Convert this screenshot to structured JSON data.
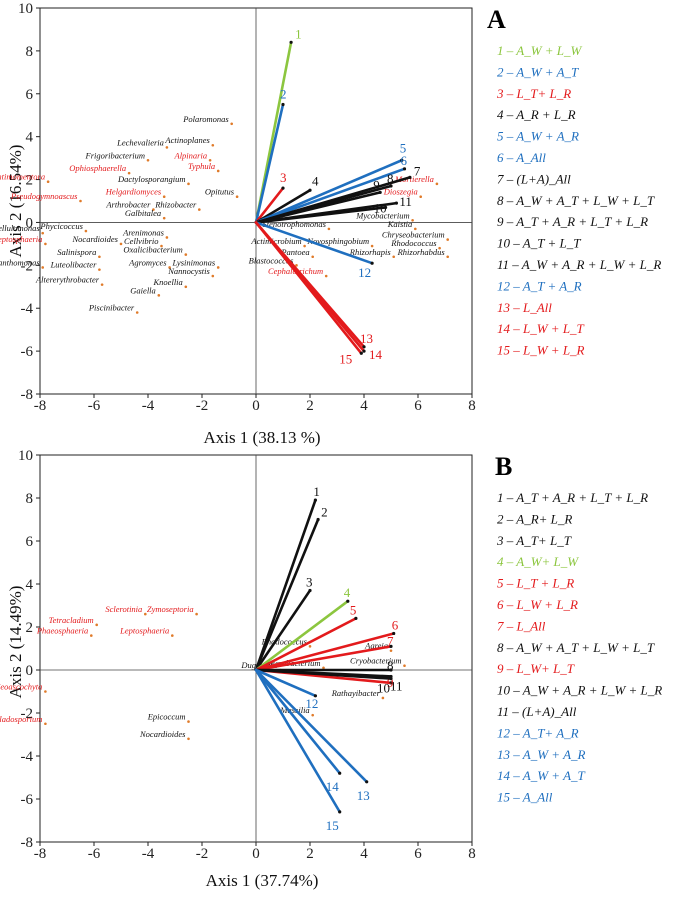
{
  "colors": {
    "green": "#8cc63f",
    "blue": "#1f6fbf",
    "red": "#e31a1c",
    "black": "#111111",
    "taxon_dot": "#e07b2a"
  },
  "chart_data": [
    {
      "type": "scatter",
      "panel": "A",
      "xlabel": "Axis 1 (38.13 %)",
      "ylabel": "Axis 2 (16.54%)",
      "xlim": [
        -8,
        8
      ],
      "ylim": [
        -8,
        10
      ],
      "xticks": [
        -8,
        -6,
        -4,
        -2,
        0,
        2,
        4,
        6,
        8
      ],
      "yticks": [
        -8,
        -6,
        -4,
        -2,
        0,
        2,
        4,
        6,
        8,
        10
      ],
      "vectors": [
        {
          "id": "1",
          "x": 1.3,
          "y": 8.4,
          "color": "green",
          "legend": "1 – A_W + L_W"
        },
        {
          "id": "2",
          "x": 1.0,
          "y": 5.5,
          "color": "blue",
          "legend": "2 – A_W + A_T"
        },
        {
          "id": "3",
          "x": 1.0,
          "y": 1.6,
          "color": "red",
          "legend": "3 – L_T+ L_R"
        },
        {
          "id": "4",
          "x": 2.0,
          "y": 1.5,
          "color": "black",
          "legend": "4 – A_R + L_R"
        },
        {
          "id": "5",
          "x": 5.4,
          "y": 2.9,
          "color": "blue",
          "legend": "5 – A_W + A_R"
        },
        {
          "id": "6",
          "x": 5.5,
          "y": 2.5,
          "color": "blue",
          "legend": "6 – A_All"
        },
        {
          "id": "7",
          "x": 5.7,
          "y": 2.1,
          "color": "black",
          "legend": "7 – (L+A)_All"
        },
        {
          "id": "8",
          "x": 5.0,
          "y": 1.7,
          "color": "black",
          "legend": "8 – A_W + A_T + L_W + L_T"
        },
        {
          "id": "9",
          "x": 4.6,
          "y": 1.4,
          "color": "black",
          "legend": "9 – A_T + A_R + L_T + L_R"
        },
        {
          "id": "10",
          "x": 4.8,
          "y": 0.7,
          "color": "black",
          "legend": "10 – A_T + L_T"
        },
        {
          "id": "11",
          "x": 5.2,
          "y": 0.9,
          "color": "black",
          "legend": "11 – A_W + A_R + L_W + L_R"
        },
        {
          "id": "12",
          "x": 4.3,
          "y": -1.9,
          "color": "blue",
          "legend": "12 – A_T + A_R"
        },
        {
          "id": "13",
          "x": 4.0,
          "y": -5.8,
          "color": "red",
          "legend": "13 – L_All"
        },
        {
          "id": "14",
          "x": 4.0,
          "y": -6.0,
          "color": "red",
          "legend": "14 – L_W + L_T"
        },
        {
          "id": "15",
          "x": 3.9,
          "y": -6.1,
          "color": "red",
          "legend": "15 – L_W + L_R"
        }
      ],
      "taxa": [
        {
          "name": "Polaromonas",
          "x": -0.9,
          "y": 4.6,
          "red": false
        },
        {
          "name": "Lechevalieria",
          "x": -3.3,
          "y": 3.5,
          "red": false
        },
        {
          "name": "Actinoplanes",
          "x": -1.6,
          "y": 3.6,
          "red": false
        },
        {
          "name": "Frigoribacterium",
          "x": -4.0,
          "y": 2.9,
          "red": false
        },
        {
          "name": "Alpinaria",
          "x": -1.7,
          "y": 2.9,
          "red": true
        },
        {
          "name": "Ophiosphaerella",
          "x": -4.7,
          "y": 2.3,
          "red": true
        },
        {
          "name": "Typhula",
          "x": -1.4,
          "y": 2.4,
          "red": true
        },
        {
          "name": "Entimomentora",
          "x": -7.7,
          "y": 1.9,
          "red": true
        },
        {
          "name": "Pseudogymnoascus",
          "x": -6.5,
          "y": 1.0,
          "red": true
        },
        {
          "name": "Dactylosporangium",
          "x": -2.5,
          "y": 1.8,
          "red": false
        },
        {
          "name": "Helgardiomyces",
          "x": -3.4,
          "y": 1.2,
          "red": true
        },
        {
          "name": "Opitutus",
          "x": -0.7,
          "y": 1.2,
          "red": false
        },
        {
          "name": "Arthrobacter",
          "x": -3.8,
          "y": 0.6,
          "red": false
        },
        {
          "name": "Rhizobacter",
          "x": -2.1,
          "y": 0.6,
          "red": false
        },
        {
          "name": "Galbitalea",
          "x": -3.4,
          "y": 0.2,
          "red": false
        },
        {
          "name": "Cellulomonas",
          "x": -7.9,
          "y": -0.5,
          "red": false
        },
        {
          "name": "Phycicoccus",
          "x": -6.3,
          "y": -0.4,
          "red": false
        },
        {
          "name": "Leptosphaeria",
          "x": -7.8,
          "y": -1.0,
          "red": true
        },
        {
          "name": "Nocardioides",
          "x": -5.0,
          "y": -1.0,
          "red": false
        },
        {
          "name": "Arenimonas",
          "x": -3.3,
          "y": -0.7,
          "red": false
        },
        {
          "name": "Cellvibrio",
          "x": -3.5,
          "y": -1.1,
          "red": false
        },
        {
          "name": "Salinispora",
          "x": -5.8,
          "y": -1.6,
          "red": false
        },
        {
          "name": "Oxalicibacterium",
          "x": -2.6,
          "y": -1.5,
          "red": false
        },
        {
          "name": "Pseudoxanthomonas",
          "x": -7.9,
          "y": -2.1,
          "red": false
        },
        {
          "name": "Agromyces",
          "x": -3.2,
          "y": -2.1,
          "red": false
        },
        {
          "name": "Luteolibacter",
          "x": -5.8,
          "y": -2.2,
          "red": false
        },
        {
          "name": "Lysinimonas",
          "x": -1.4,
          "y": -2.1,
          "red": false
        },
        {
          "name": "Nannocystis",
          "x": -1.6,
          "y": -2.5,
          "red": false
        },
        {
          "name": "Altererythrobacter",
          "x": -5.7,
          "y": -2.9,
          "red": false
        },
        {
          "name": "Knoellia",
          "x": -2.6,
          "y": -3.0,
          "red": false
        },
        {
          "name": "Gaiella",
          "x": -3.6,
          "y": -3.4,
          "red": false
        },
        {
          "name": "Piscinibacter",
          "x": -4.4,
          "y": -4.2,
          "red": false
        },
        {
          "name": "Mortierella",
          "x": 6.7,
          "y": 1.8,
          "red": true
        },
        {
          "name": "Dioszegia",
          "x": 6.1,
          "y": 1.2,
          "red": true
        },
        {
          "name": "Mycobacterium",
          "x": 5.8,
          "y": 0.1,
          "red": false
        },
        {
          "name": "Stenotrophomonas",
          "x": 2.7,
          "y": -0.3,
          "red": false
        },
        {
          "name": "Kaistia",
          "x": 5.9,
          "y": -0.3,
          "red": false
        },
        {
          "name": "Chryseobacterium",
          "x": 7.1,
          "y": -0.8,
          "red": false
        },
        {
          "name": "Actimicrobium",
          "x": 1.8,
          "y": -1.1,
          "red": false
        },
        {
          "name": "Novosphingobium",
          "x": 4.3,
          "y": -1.1,
          "red": false
        },
        {
          "name": "Rhodococcus",
          "x": 6.8,
          "y": -1.2,
          "red": false
        },
        {
          "name": "Pantoea",
          "x": 2.1,
          "y": -1.6,
          "red": false
        },
        {
          "name": "Rhizorhapis",
          "x": 5.1,
          "y": -1.6,
          "red": false
        },
        {
          "name": "Rhizorhabdus",
          "x": 7.1,
          "y": -1.6,
          "red": false
        },
        {
          "name": "Blastococcus",
          "x": 1.5,
          "y": -2.0,
          "red": false
        },
        {
          "name": "Cephalotrichum",
          "x": 2.6,
          "y": -2.5,
          "red": true
        }
      ]
    },
    {
      "type": "scatter",
      "panel": "B",
      "xlabel": "Axis 1 (37.74%)",
      "ylabel": "Axis 2 (14.49%)",
      "xlim": [
        -8,
        8
      ],
      "ylim": [
        -8,
        10
      ],
      "xticks": [
        -8,
        -6,
        -4,
        -2,
        0,
        2,
        4,
        6,
        8
      ],
      "yticks": [
        -8,
        -6,
        -4,
        -2,
        0,
        2,
        4,
        6,
        8,
        10
      ],
      "vectors": [
        {
          "id": "1",
          "x": 2.2,
          "y": 7.9,
          "color": "black",
          "legend": "1 – A_T + A_R + L_T + L_R"
        },
        {
          "id": "2",
          "x": 2.3,
          "y": 7.0,
          "color": "black",
          "legend": "2 – A_R+ L_R"
        },
        {
          "id": "3",
          "x": 2.0,
          "y": 3.7,
          "color": "black",
          "legend": "3 – A_T+ L_T"
        },
        {
          "id": "4",
          "x": 3.4,
          "y": 3.2,
          "color": "green",
          "legend": "4 – A_W+ L_W"
        },
        {
          "id": "5",
          "x": 3.7,
          "y": 2.4,
          "color": "red",
          "legend": "5 – L_T + L_R"
        },
        {
          "id": "6",
          "x": 5.1,
          "y": 1.7,
          "color": "red",
          "legend": "6 – L_W + L_R"
        },
        {
          "id": "7",
          "x": 5.0,
          "y": 1.1,
          "color": "red",
          "legend": "7 – L_All"
        },
        {
          "id": "8",
          "x": 5.0,
          "y": 0.0,
          "color": "black",
          "legend": "8 – A_W + A_T + L_W + L_T"
        },
        {
          "id": "9",
          "x": 5.0,
          "y": -0.6,
          "color": "red",
          "legend": "9 – L_W+ L_T"
        },
        {
          "id": "10",
          "x": 5.0,
          "y": -0.4,
          "color": "black",
          "legend": "10 – A_W + A_R + L_W + L_R"
        },
        {
          "id": "11",
          "x": 5.0,
          "y": -0.3,
          "color": "black",
          "legend": "11 – (L+A)_All"
        },
        {
          "id": "12",
          "x": 2.2,
          "y": -1.2,
          "color": "blue",
          "legend": "12 – A_T+ A_R"
        },
        {
          "id": "13",
          "x": 4.1,
          "y": -5.2,
          "color": "blue",
          "legend": "13 – A_W + A_R"
        },
        {
          "id": "14",
          "x": 3.1,
          "y": -4.8,
          "color": "blue",
          "legend": "14 – A_W + A_T"
        },
        {
          "id": "15",
          "x": 3.1,
          "y": -6.6,
          "color": "blue",
          "legend": "15 – A_All"
        }
      ],
      "taxa": [
        {
          "name": "Sclerotinia",
          "x": -4.1,
          "y": 2.6,
          "red": true
        },
        {
          "name": "Zymoseptoria",
          "x": -2.2,
          "y": 2.6,
          "red": true
        },
        {
          "name": "Tetracladium",
          "x": -5.9,
          "y": 2.1,
          "red": true
        },
        {
          "name": "Phaeosphaeria",
          "x": -6.1,
          "y": 1.6,
          "red": true
        },
        {
          "name": "Leptosphaeria",
          "x": -3.1,
          "y": 1.6,
          "red": true
        },
        {
          "name": "Neoascochyta",
          "x": -7.8,
          "y": -1.0,
          "red": true
        },
        {
          "name": "Cladosporium",
          "x": -7.8,
          "y": -2.5,
          "red": true
        },
        {
          "name": "Epicoccum",
          "x": -2.5,
          "y": -2.4,
          "red": false
        },
        {
          "name": "Nocardioides",
          "x": -2.5,
          "y": -3.2,
          "red": false
        },
        {
          "name": "Rhodococcus",
          "x": 2.0,
          "y": 1.1,
          "red": false
        },
        {
          "name": "Agreia",
          "x": 5.0,
          "y": 0.9,
          "red": false
        },
        {
          "name": "Cryobacterium",
          "x": 5.5,
          "y": 0.2,
          "red": false
        },
        {
          "name": "Duganella",
          "x": 0.9,
          "y": 0.0,
          "red": false
        },
        {
          "name": "Microbacterium",
          "x": 2.5,
          "y": 0.1,
          "red": false
        },
        {
          "name": "Rathayibacter",
          "x": 4.7,
          "y": -1.3,
          "red": false
        },
        {
          "name": "Massilia",
          "x": 2.1,
          "y": -2.1,
          "red": false
        }
      ]
    }
  ]
}
